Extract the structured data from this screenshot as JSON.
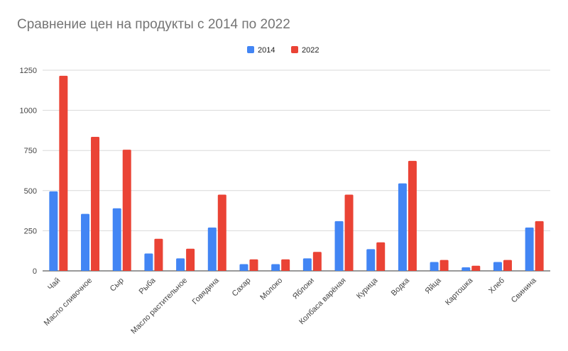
{
  "chart_data": {
    "type": "bar",
    "title": "Сравнение цен на продукты с 2014 по 2022",
    "xlabel": "",
    "ylabel": "",
    "ylim": [
      0,
      1250
    ],
    "yticks": [
      0,
      250,
      500,
      750,
      1000,
      1250
    ],
    "grid": true,
    "legend_position": "top-center",
    "categories": [
      "Чай",
      "Масло сливочное",
      "Сыр",
      "Рыба",
      "Масло растительное",
      "Говядина",
      "Сахар",
      "Молоко",
      "Яблоки",
      "Колбаса варёная",
      "Курица",
      "Водка",
      "Яйца",
      "Картошка",
      "Хлеб",
      "Свинина"
    ],
    "series": [
      {
        "name": "2014",
        "color": "#4285f4",
        "values": [
          495,
          355,
          390,
          108,
          78,
          270,
          42,
          42,
          78,
          310,
          135,
          545,
          55,
          22,
          55,
          270
        ]
      },
      {
        "name": "2022",
        "color": "#ea4335",
        "values": [
          1215,
          835,
          755,
          200,
          138,
          475,
          72,
          72,
          118,
          475,
          178,
          685,
          68,
          32,
          68,
          310
        ]
      }
    ]
  }
}
